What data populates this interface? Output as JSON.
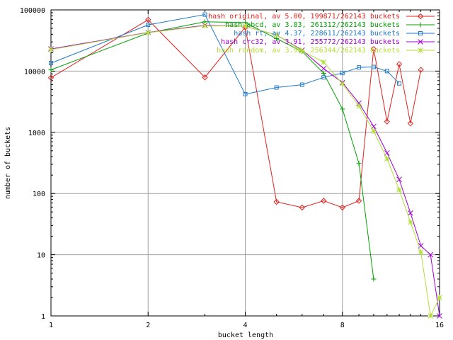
{
  "chart_data": {
    "type": "line",
    "title": "",
    "xlabel": "bucket length",
    "ylabel": "number of buckets",
    "x_scale": "log2",
    "y_scale": "log10",
    "xlim": [
      1,
      16
    ],
    "ylim": [
      1,
      100000
    ],
    "x_ticks": [
      1,
      2,
      4,
      8,
      16
    ],
    "x_tick_labels": [
      "1",
      "2",
      "4",
      "8",
      "16"
    ],
    "y_ticks": [
      1,
      10,
      100,
      1000,
      10000,
      100000
    ],
    "y_tick_labels": [
      "1",
      "10",
      "100",
      "1000",
      "10000",
      "100000"
    ],
    "grid": true,
    "legend_position": "top-right",
    "series": [
      {
        "name": "hash original, av 5.00, 199871/262143 buckets",
        "color": "#e0221e",
        "marker": "diamond",
        "points": [
          [
            1,
            7800
          ],
          [
            2,
            69000
          ],
          [
            3,
            7900
          ],
          [
            4,
            52000
          ],
          [
            5,
            73
          ],
          [
            6,
            59
          ],
          [
            7,
            76
          ],
          [
            8,
            59
          ],
          [
            9,
            76
          ],
          [
            10,
            23000
          ],
          [
            11,
            1500
          ],
          [
            12,
            13000
          ],
          [
            13,
            1400
          ],
          [
            14,
            10500
          ]
        ]
      },
      {
        "name": "hash abcd, av 3.83, 261312/262143 buckets",
        "color": "#00a000",
        "marker": "plus",
        "points": [
          [
            1,
            10500
          ],
          [
            2,
            42000
          ],
          [
            3,
            64000
          ],
          [
            4,
            62000
          ],
          [
            5,
            34000
          ],
          [
            6,
            21000
          ],
          [
            7,
            9200
          ],
          [
            8,
            2400
          ],
          [
            9,
            310
          ],
          [
            10,
            4
          ]
        ]
      },
      {
        "name": "hash rt, av 4.37, 228611/262143 buckets",
        "color": "#1f78c8",
        "marker": "square",
        "points": [
          [
            1,
            13500
          ],
          [
            2,
            57000
          ],
          [
            3,
            84000
          ],
          [
            4,
            4200
          ],
          [
            5,
            5400
          ],
          [
            6,
            6000
          ],
          [
            7,
            7900
          ],
          [
            8,
            9300
          ],
          [
            9,
            11500
          ],
          [
            10,
            11700
          ],
          [
            11,
            10000
          ],
          [
            12,
            6300
          ]
        ]
      },
      {
        "name": "hash crc32, av 3.91, 255772/262143 buckets",
        "color": "#a000d0",
        "marker": "cross",
        "points": [
          [
            1,
            23000
          ],
          [
            2,
            43000
          ],
          [
            3,
            56000
          ],
          [
            4,
            54000
          ],
          [
            5,
            39000
          ],
          [
            6,
            22000
          ],
          [
            7,
            11000
          ],
          [
            8,
            6500
          ],
          [
            9,
            3000
          ],
          [
            10,
            1250
          ],
          [
            11,
            460
          ],
          [
            12,
            170
          ],
          [
            13,
            48
          ],
          [
            14,
            14
          ],
          [
            15,
            10
          ],
          [
            16,
            1
          ]
        ]
      },
      {
        "name": "hash random, av 3.90, 256344/262143 buckets",
        "color": "#b3dc3a",
        "marker": "star",
        "points": [
          [
            1,
            22500
          ],
          [
            2,
            42500
          ],
          [
            3,
            55000
          ],
          [
            4,
            54000
          ],
          [
            5,
            39000
          ],
          [
            6,
            21500
          ],
          [
            7,
            14000
          ],
          [
            8,
            6200
          ],
          [
            9,
            2700
          ],
          [
            10,
            1050
          ],
          [
            11,
            370
          ],
          [
            12,
            115
          ],
          [
            13,
            34
          ],
          [
            14,
            11
          ],
          [
            15,
            1
          ],
          [
            16,
            2
          ]
        ]
      }
    ]
  }
}
